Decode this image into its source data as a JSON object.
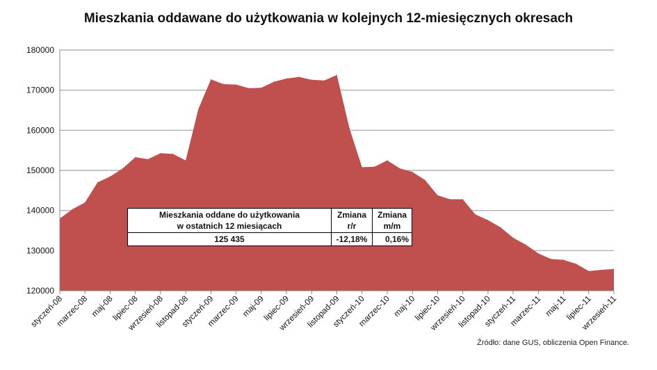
{
  "chart_data": {
    "type": "area",
    "title": "Mieszkania oddawane do użytkowania w kolejnych 12-miesięcznych okresach",
    "xlabel": "",
    "ylabel": "",
    "ylim": [
      120000,
      180000
    ],
    "yticks": [
      "120000",
      "130000",
      "140000",
      "150000",
      "160000",
      "170000",
      "180000"
    ],
    "ytick_values": [
      120000,
      130000,
      140000,
      150000,
      160000,
      170000,
      180000
    ],
    "grid": true,
    "color": "#c0504d",
    "xtick_labels": [
      "styczeń-08",
      "marzec-08",
      "maj-08",
      "lipiec-08",
      "wrzesień-08",
      "listopad-08",
      "styczeń-09",
      "marzec-09",
      "maj-09",
      "lipiec-09",
      "wrzesień-09",
      "listopad-09",
      "styczeń-10",
      "marzec-10",
      "maj-10",
      "lipiec-10",
      "wrzesień-10",
      "listopad-10",
      "styczeń-11",
      "marzec-11",
      "maj-11",
      "lipiec-11",
      "wrzesień-11"
    ],
    "values": [
      138000,
      140300,
      142000,
      147000,
      148500,
      150500,
      153300,
      152800,
      154300,
      154100,
      152500,
      165300,
      172700,
      171500,
      171400,
      170500,
      170600,
      172100,
      172900,
      173300,
      172600,
      172400,
      173800,
      160500,
      150800,
      150900,
      152500,
      150500,
      149600,
      147600,
      143800,
      142800,
      142800,
      139000,
      137600,
      135800,
      133200,
      131500,
      129300,
      127900,
      127700,
      126700,
      124900,
      125200,
      125435
    ]
  },
  "infobox": {
    "header_main": "Mieszkania oddane do użytkowania",
    "header_main2": "w ostatnich 12 miesiącach",
    "header_yy": "Zmiana",
    "header_yy2": "r/r",
    "header_mm": "Zmiana",
    "header_mm2": "m/m",
    "value": "125 435",
    "yy": "-12,18%",
    "mm": "0,16%"
  },
  "source": "Źródło: dane GUS, obliczenia Open Finance."
}
